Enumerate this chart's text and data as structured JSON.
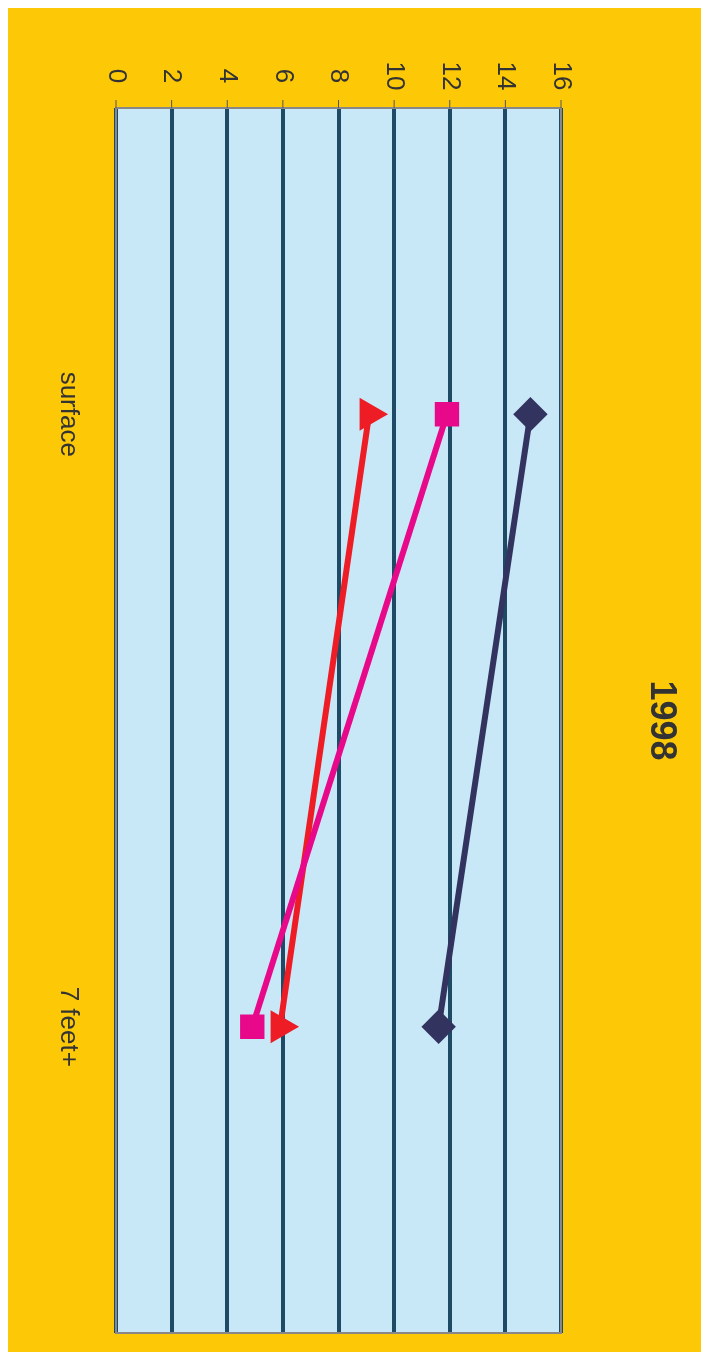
{
  "chart_data": {
    "type": "line",
    "title": "1998",
    "orientation": "horizontal",
    "categories": [
      "surface",
      "7 feet+"
    ],
    "series": [
      {
        "color": "#33335f",
        "marker": "diamond",
        "values": [
          14.9,
          11.6
        ]
      },
      {
        "color": "#e8088a",
        "marker": "square",
        "values": [
          11.9,
          4.9
        ]
      },
      {
        "color": "#ee1c24",
        "marker": "triangle",
        "values": [
          9.1,
          5.9
        ]
      }
    ],
    "xlim": [
      0,
      16
    ],
    "xticks": [
      0,
      2,
      4,
      6,
      8,
      10,
      12,
      14,
      16
    ],
    "grid": "x",
    "legend": false
  }
}
